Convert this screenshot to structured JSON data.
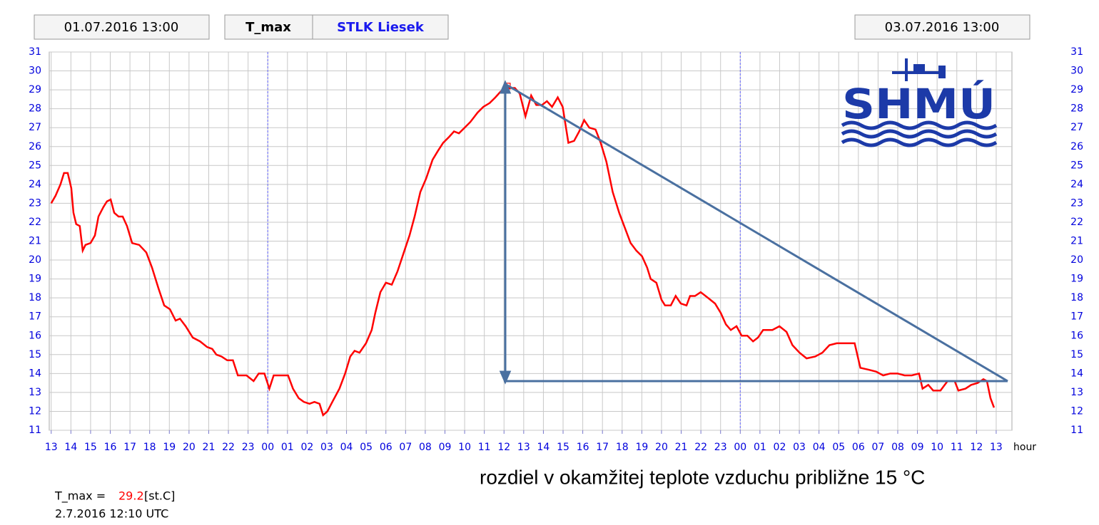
{
  "header": {
    "start": "01.07.2016 13:00",
    "variable": "T_max",
    "station": "STLK Liesek",
    "end": "03.07.2016 13:00"
  },
  "logo": "SHMÚ",
  "chart_data": {
    "type": "line",
    "color": "#ff0000",
    "x_label": "hour",
    "annotation": "rozdiel v okamžitej teplote vzduchu približne 15 °C",
    "xlim": [
      -0.1,
      48.8
    ],
    "ylim": [
      11,
      31
    ],
    "grid": true,
    "day_lines": [
      11,
      35
    ],
    "day_line_color": "#6666ff",
    "yticks": [
      11,
      12,
      13,
      14,
      15,
      16,
      17,
      18,
      19,
      20,
      21,
      22,
      23,
      24,
      25,
      26,
      27,
      28,
      29,
      30,
      31
    ],
    "xticks": [
      {
        "value": 0,
        "label": "13"
      },
      {
        "value": 1,
        "label": "14"
      },
      {
        "value": 2,
        "label": "15"
      },
      {
        "value": 3,
        "label": "16"
      },
      {
        "value": 4,
        "label": "17"
      },
      {
        "value": 5,
        "label": "18"
      },
      {
        "value": 6,
        "label": "19"
      },
      {
        "value": 7,
        "label": "20"
      },
      {
        "value": 8,
        "label": "21"
      },
      {
        "value": 9,
        "label": "22"
      },
      {
        "value": 10,
        "label": "23"
      },
      {
        "value": 11,
        "label": "00"
      },
      {
        "value": 12,
        "label": "01"
      },
      {
        "value": 13,
        "label": "02"
      },
      {
        "value": 14,
        "label": "03"
      },
      {
        "value": 15,
        "label": "04"
      },
      {
        "value": 16,
        "label": "05"
      },
      {
        "value": 17,
        "label": "06"
      },
      {
        "value": 18,
        "label": "07"
      },
      {
        "value": 19,
        "label": "08"
      },
      {
        "value": 20,
        "label": "09"
      },
      {
        "value": 21,
        "label": "10"
      },
      {
        "value": 22,
        "label": "11"
      },
      {
        "value": 23,
        "label": "12"
      },
      {
        "value": 24,
        "label": "13"
      },
      {
        "value": 25,
        "label": "14"
      },
      {
        "value": 26,
        "label": "15"
      },
      {
        "value": 27,
        "label": "16"
      },
      {
        "value": 28,
        "label": "17"
      },
      {
        "value": 29,
        "label": "18"
      },
      {
        "value": 30,
        "label": "19"
      },
      {
        "value": 31,
        "label": "20"
      },
      {
        "value": 32,
        "label": "21"
      },
      {
        "value": 33,
        "label": "22"
      },
      {
        "value": 34,
        "label": "23"
      },
      {
        "value": 35,
        "label": "00"
      },
      {
        "value": 36,
        "label": "01"
      },
      {
        "value": 37,
        "label": "02"
      },
      {
        "value": 38,
        "label": "03"
      },
      {
        "value": 39,
        "label": "04"
      },
      {
        "value": 40,
        "label": "05"
      },
      {
        "value": 41,
        "label": "06"
      },
      {
        "value": 42,
        "label": "07"
      },
      {
        "value": 43,
        "label": "08"
      },
      {
        "value": 44,
        "label": "09"
      },
      {
        "value": 45,
        "label": "10"
      },
      {
        "value": 46,
        "label": "11"
      },
      {
        "value": 47,
        "label": "12"
      },
      {
        "value": 48,
        "label": "13"
      }
    ],
    "x": [
      0,
      0.22,
      0.47,
      0.65,
      0.84,
      1.02,
      1.13,
      1.27,
      1.45,
      1.6,
      1.74,
      2.0,
      2.22,
      2.4,
      2.65,
      2.83,
      3.02,
      3.2,
      3.42,
      3.63,
      3.85,
      4.11,
      4.47,
      4.83,
      5.12,
      5.45,
      5.74,
      6.03,
      6.32,
      6.54,
      6.83,
      7.19,
      7.56,
      7.92,
      8.18,
      8.39,
      8.65,
      8.94,
      9.23,
      9.48,
      9.92,
      10.28,
      10.54,
      10.83,
      11.08,
      11.3,
      11.66,
      12.03,
      12.28,
      12.57,
      12.83,
      13.12,
      13.37,
      13.63,
      13.81,
      14.03,
      14.28,
      14.64,
      14.93,
      15.19,
      15.41,
      15.66,
      15.99,
      16.28,
      16.46,
      16.72,
      17.0,
      17.3,
      17.59,
      17.91,
      18.2,
      18.46,
      18.75,
      19.04,
      19.37,
      19.66,
      19.91,
      20.2,
      20.46,
      20.71,
      21.0,
      21.29,
      21.66,
      21.95,
      22.27,
      22.56,
      22.82,
      23.17,
      23.28,
      23.55,
      23.8,
      24.09,
      24.38,
      24.64,
      24.93,
      25.18,
      25.44,
      25.73,
      25.98,
      26.27,
      26.56,
      26.82,
      27.07,
      27.33,
      27.65,
      27.91,
      28.2,
      28.52,
      28.85,
      29.14,
      29.43,
      29.72,
      30.01,
      30.27,
      30.45,
      30.74,
      31.0,
      31.18,
      31.47,
      31.72,
      31.98,
      32.27,
      32.45,
      32.7,
      32.99,
      33.36,
      33.72,
      34.01,
      34.27,
      34.52,
      34.81,
      35.07,
      35.36,
      35.65,
      35.9,
      36.16,
      36.63,
      36.99,
      37.35,
      37.65,
      38.01,
      38.37,
      38.81,
      39.17,
      39.53,
      39.9,
      40.44,
      40.81,
      41.1,
      41.53,
      41.9,
      42.26,
      42.62,
      42.99,
      43.35,
      43.71,
      44.08,
      44.26,
      44.55,
      44.8,
      45.17,
      45.53,
      45.89,
      46.08,
      46.44,
      46.73,
      47.06,
      47.35,
      47.53,
      47.71,
      47.89
    ],
    "values": [
      23.0,
      23.4,
      24.0,
      24.6,
      24.6,
      23.8,
      22.5,
      21.9,
      21.8,
      20.5,
      20.8,
      20.9,
      21.3,
      22.3,
      22.8,
      23.1,
      23.2,
      22.5,
      22.3,
      22.3,
      21.8,
      20.9,
      20.8,
      20.4,
      19.6,
      18.5,
      17.6,
      17.4,
      16.8,
      16.9,
      16.5,
      15.9,
      15.7,
      15.4,
      15.3,
      15.0,
      14.9,
      14.7,
      14.7,
      13.9,
      13.9,
      13.6,
      14.0,
      14.0,
      13.2,
      13.9,
      13.9,
      13.9,
      13.2,
      12.7,
      12.5,
      12.4,
      12.5,
      12.4,
      11.8,
      12.0,
      12.5,
      13.2,
      14.0,
      14.9,
      15.2,
      15.1,
      15.6,
      16.3,
      17.2,
      18.3,
      18.8,
      18.7,
      19.4,
      20.4,
      21.3,
      22.3,
      23.6,
      24.3,
      25.3,
      25.8,
      26.2,
      26.5,
      26.8,
      26.7,
      27.0,
      27.3,
      27.8,
      28.1,
      28.3,
      28.6,
      28.9,
      29.2,
      29.1,
      29.1,
      28.8,
      27.6,
      28.7,
      28.2,
      28.2,
      28.4,
      28.1,
      28.6,
      28.1,
      26.2,
      26.3,
      26.8,
      27.4,
      27.0,
      26.9,
      26.2,
      25.2,
      23.6,
      22.5,
      21.7,
      20.9,
      20.5,
      20.2,
      19.6,
      19.0,
      18.8,
      17.9,
      17.6,
      17.6,
      18.1,
      17.7,
      17.6,
      18.1,
      18.1,
      18.3,
      18.0,
      17.7,
      17.2,
      16.6,
      16.3,
      16.5,
      16.0,
      16.0,
      15.7,
      15.9,
      16.3,
      16.3,
      16.5,
      16.2,
      15.5,
      15.1,
      14.8,
      14.9,
      15.1,
      15.5,
      15.6,
      15.6,
      15.6,
      14.3,
      14.2,
      14.1,
      13.9,
      14.0,
      14.0,
      13.9,
      13.9,
      14.0,
      13.2,
      13.4,
      13.1,
      13.1,
      13.6,
      13.6,
      13.1,
      13.2,
      13.4,
      13.5,
      13.7,
      13.6,
      12.7,
      12.2
    ]
  },
  "footer": {
    "label": "T_max =",
    "value": 29.2,
    "unit": "[st.C]",
    "time": "2.7.2016 12:10 UTC"
  }
}
